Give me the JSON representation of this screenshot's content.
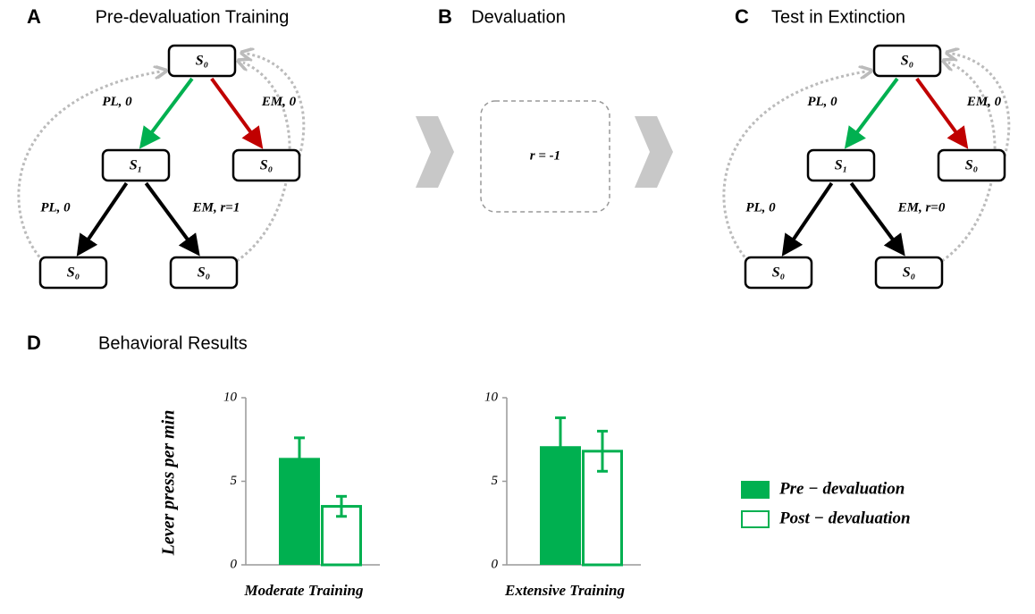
{
  "panels": [
    {
      "letter": "A",
      "title": "Pre-devaluation Training",
      "nodes": [
        "S₀",
        "S₁",
        "S₀",
        "S₀",
        "S₀"
      ],
      "edges": [
        "PL, 0",
        "EM, 0",
        "PL, 0",
        "EM, r=1"
      ]
    },
    {
      "letter": "B",
      "title": "Devaluation",
      "reward": "r = -1"
    },
    {
      "letter": "C",
      "title": "Test in Extinction",
      "nodes": [
        "S₀",
        "S₁",
        "S₀",
        "S₀",
        "S₀"
      ],
      "edges": [
        "PL, 0",
        "EM, 0",
        "PL, 0",
        "EM, r=0"
      ]
    },
    {
      "letter": "D",
      "title": "Behavioral Results"
    }
  ],
  "chart_data": {
    "type": "bar",
    "ylabel": "Lever press per min",
    "categories": [
      "Moderate Training",
      "Extensive Training"
    ],
    "series": [
      {
        "name": "Pre − devaluation",
        "color": "#00b050",
        "fill": true,
        "values": [
          6.4,
          7.1
        ],
        "errors": [
          1.2,
          1.7
        ]
      },
      {
        "name": "Post − devaluation",
        "color": "#00b050",
        "fill": false,
        "values": [
          3.5,
          6.8
        ],
        "errors": [
          0.6,
          1.2
        ]
      }
    ],
    "ylim": [
      0,
      10
    ],
    "yticks": [
      0,
      5,
      10
    ]
  }
}
